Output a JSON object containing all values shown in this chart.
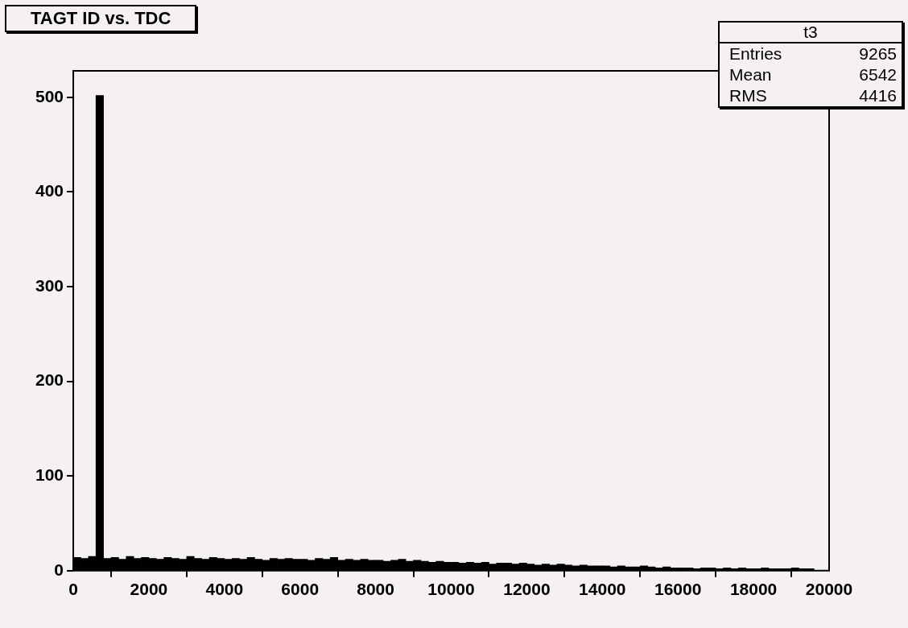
{
  "chart_data": {
    "type": "histogram",
    "title": "TAGT ID vs. TDC",
    "annotations": [
      "t3",
      "Entries",
      "9265",
      "Mean",
      "6542",
      "RMS",
      "4416"
    ],
    "bins": [
      0,
      200,
      400,
      600,
      800,
      1000,
      1200,
      1400,
      1600,
      1800,
      2000,
      2200,
      2400,
      2600,
      2800,
      3000,
      3200,
      3400,
      3600,
      3800,
      4000,
      4200,
      4400,
      4600,
      4800,
      5000,
      5200,
      5400,
      5600,
      5800,
      6000,
      6200,
      6400,
      6600,
      6800,
      7000,
      7200,
      7400,
      7600,
      7800,
      8000,
      8200,
      8400,
      8600,
      8800,
      9000,
      9200,
      9400,
      9600,
      9800,
      10000,
      10200,
      10400,
      10600,
      10800,
      11000,
      11200,
      11400,
      11600,
      11800,
      12000,
      12200,
      12400,
      12600,
      12800,
      13000,
      13200,
      13400,
      13600,
      13800,
      14000,
      14200,
      14400,
      14600,
      14800,
      15000,
      15200,
      15400,
      15600,
      15800,
      16000,
      16200,
      16400,
      16600,
      16800,
      17000,
      17200,
      17400,
      17600,
      17800,
      18000,
      18200,
      18400,
      18600,
      18800,
      19000,
      19200,
      19400,
      19600,
      19800,
      20000
    ],
    "values": [
      14,
      13,
      15,
      502,
      13,
      14,
      12,
      15,
      13,
      14,
      13,
      12,
      14,
      13,
      12,
      15,
      13,
      12,
      14,
      13,
      12,
      13,
      12,
      14,
      12,
      11,
      13,
      12,
      13,
      12,
      12,
      11,
      13,
      12,
      14,
      11,
      12,
      11,
      12,
      11,
      11,
      10,
      11,
      12,
      10,
      11,
      10,
      9,
      10,
      9,
      9,
      8,
      9,
      8,
      9,
      7,
      8,
      8,
      7,
      8,
      7,
      6,
      7,
      6,
      7,
      6,
      5,
      6,
      5,
      5,
      5,
      4,
      5,
      4,
      4,
      5,
      4,
      3,
      4,
      3,
      3,
      3,
      2,
      3,
      3,
      2,
      3,
      2,
      3,
      2,
      2,
      3,
      2,
      2,
      2,
      3,
      2,
      2,
      0,
      0
    ],
    "color": "#000000",
    "xlim": [
      0,
      20000
    ],
    "xticks": [
      0,
      2000,
      4000,
      6000,
      8000,
      10000,
      12000,
      14000,
      16000,
      18000,
      20000
    ],
    "ylim": [
      0,
      528
    ],
    "yticks": [
      0,
      100,
      200,
      300,
      400,
      500
    ],
    "grid": false
  }
}
